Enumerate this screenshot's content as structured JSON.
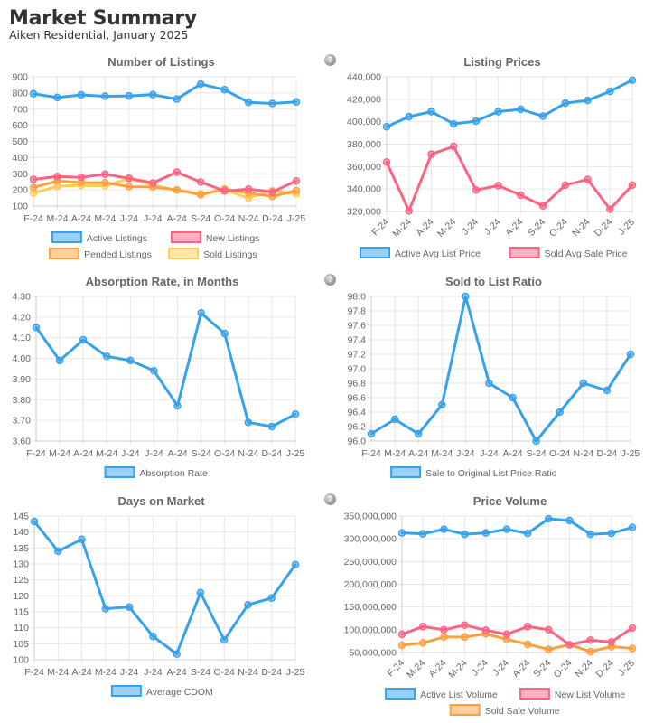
{
  "header": {
    "title": "Market Summary",
    "subtitle": "Aiken Residential, January 2025"
  },
  "help_icon_glyph": "?",
  "colors": {
    "blue": "#36a2eb",
    "pink": "#ff6384",
    "orange": "#ff9f40",
    "yellow": "#ffcd56"
  },
  "chart_data": [
    {
      "id": "listings",
      "type": "line",
      "title": "Number of Listings",
      "categories": [
        "F-24",
        "M-24",
        "A-24",
        "M-24",
        "J-24",
        "J-24",
        "A-24",
        "S-24",
        "O-24",
        "N-24",
        "D-24",
        "J-25"
      ],
      "ylim": [
        100,
        900
      ],
      "yticks": [
        100,
        200,
        300,
        400,
        500,
        600,
        700,
        800,
        900
      ],
      "ytick_format": "plain",
      "grid": true,
      "xlabel_rotated": false,
      "has_help_icon": false,
      "legend_position": "bottom",
      "series": [
        {
          "name": "Active Listings",
          "color": "blue",
          "values": [
            795,
            772,
            788,
            780,
            782,
            790,
            762,
            855,
            820,
            742,
            735,
            745
          ]
        },
        {
          "name": "New Listings",
          "color": "pink",
          "values": [
            265,
            283,
            278,
            297,
            272,
            243,
            310,
            248,
            193,
            205,
            187,
            255
          ]
        },
        {
          "name": "Pended Listings",
          "color": "orange",
          "values": [
            215,
            255,
            245,
            245,
            220,
            218,
            200,
            170,
            205,
            180,
            160,
            195
          ]
        },
        {
          "name": "Sold Listings",
          "color": "yellow",
          "values": [
            180,
            222,
            228,
            225,
            270,
            230,
            198,
            175,
            200,
            150,
            195,
            175
          ]
        }
      ]
    },
    {
      "id": "prices",
      "type": "line",
      "title": "Listing Prices",
      "categories": [
        "F-24",
        "M-24",
        "A-24",
        "M-24",
        "J-24",
        "J-24",
        "A-24",
        "S-24",
        "O-24",
        "N-24",
        "D-24",
        "J-25"
      ],
      "ylim": [
        320000,
        440000
      ],
      "yticks": [
        320000,
        340000,
        360000,
        380000,
        400000,
        420000,
        440000
      ],
      "ytick_format": "comma",
      "grid": true,
      "xlabel_rotated": true,
      "has_help_icon": true,
      "legend_position": "bottom",
      "series": [
        {
          "name": "Active Avg List Price",
          "color": "blue",
          "values": [
            395500,
            404500,
            409000,
            398000,
            400500,
            409000,
            411000,
            405000,
            416500,
            419000,
            427000,
            437000
          ]
        },
        {
          "name": "Sold Avg Sale Price",
          "color": "pink",
          "values": [
            364000,
            320500,
            371000,
            378000,
            339000,
            343000,
            334500,
            325000,
            343500,
            348500,
            322000,
            343500
          ]
        }
      ]
    },
    {
      "id": "absorption",
      "type": "line",
      "title": "Absorption Rate, in Months",
      "categories": [
        "F-24",
        "M-24",
        "A-24",
        "M-24",
        "J-24",
        "J-24",
        "A-24",
        "S-24",
        "O-24",
        "N-24",
        "D-24",
        "J-25"
      ],
      "ylim": [
        3.6,
        4.3
      ],
      "yticks": [
        3.6,
        3.7,
        3.8,
        3.9,
        4.0,
        4.1,
        4.2,
        4.3
      ],
      "ytick_format": "fixed2",
      "grid": true,
      "xlabel_rotated": false,
      "has_help_icon": false,
      "legend_position": "bottom",
      "series": [
        {
          "name": "Absorption Rate",
          "color": "blue",
          "values": [
            4.15,
            3.99,
            4.09,
            4.01,
            3.99,
            3.94,
            3.77,
            4.22,
            4.12,
            3.69,
            3.67,
            3.73
          ]
        }
      ]
    },
    {
      "id": "ratio",
      "type": "line",
      "title": "Sold to List Ratio",
      "categories": [
        "F-24",
        "M-24",
        "A-24",
        "M-24",
        "J-24",
        "J-24",
        "A-24",
        "S-24",
        "O-24",
        "N-24",
        "D-24",
        "J-25"
      ],
      "ylim": [
        96.0,
        98.0
      ],
      "yticks": [
        96.0,
        96.2,
        96.4,
        96.6,
        96.8,
        97.0,
        97.2,
        97.4,
        97.6,
        97.8,
        98.0
      ],
      "ytick_format": "fixed1",
      "grid": true,
      "xlabel_rotated": false,
      "has_help_icon": true,
      "legend_position": "bottom",
      "series": [
        {
          "name": "Sale to Original List Price Ratio",
          "color": "blue",
          "values": [
            96.1,
            96.3,
            96.1,
            96.5,
            98.0,
            96.8,
            96.6,
            96.0,
            96.4,
            96.8,
            96.7,
            97.2
          ]
        }
      ]
    },
    {
      "id": "dom",
      "type": "line",
      "title": "Days on Market",
      "categories": [
        "F-24",
        "M-24",
        "A-24",
        "M-24",
        "J-24",
        "J-24",
        "A-24",
        "S-24",
        "O-24",
        "N-24",
        "D-24",
        "J-25"
      ],
      "ylim": [
        100,
        145
      ],
      "yticks": [
        100,
        105,
        110,
        115,
        120,
        125,
        130,
        135,
        140,
        145
      ],
      "ytick_format": "plain",
      "grid": true,
      "xlabel_rotated": false,
      "has_help_icon": false,
      "legend_position": "bottom",
      "series": [
        {
          "name": "Average CDOM",
          "color": "blue",
          "values": [
            143.3,
            134,
            137.7,
            116,
            116.5,
            107.3,
            101.8,
            121,
            106.2,
            117.2,
            119.3,
            129.8
          ]
        }
      ]
    },
    {
      "id": "volume",
      "type": "line",
      "title": "Price Volume",
      "categories": [
        "F-24",
        "M-24",
        "A-24",
        "M-24",
        "J-24",
        "J-24",
        "A-24",
        "S-24",
        "O-24",
        "N-24",
        "D-24",
        "J-25"
      ],
      "ylim": [
        50000000,
        350000000
      ],
      "yticks": [
        50000000,
        100000000,
        150000000,
        200000000,
        250000000,
        300000000,
        350000000
      ],
      "ytick_format": "comma",
      "grid": true,
      "xlabel_rotated": true,
      "has_help_icon": true,
      "legend_position": "bottom",
      "series": [
        {
          "name": "Active List Volume",
          "color": "blue",
          "values": [
            313000000,
            311000000,
            321000000,
            310000000,
            313000000,
            321000000,
            312000000,
            344000000,
            340000000,
            310000000,
            312000000,
            325000000
          ]
        },
        {
          "name": "New List Volume",
          "color": "pink",
          "values": [
            90000000,
            107000000,
            100000000,
            110000000,
            99000000,
            90000000,
            107000000,
            100000000,
            67000000,
            77000000,
            73000000,
            104000000
          ]
        },
        {
          "name": "Sold Sale Volume",
          "color": "orange",
          "values": [
            66000000,
            71000000,
            84000000,
            84000000,
            91000000,
            79000000,
            68000000,
            57000000,
            67000000,
            52000000,
            63000000,
            59000000
          ]
        }
      ]
    }
  ]
}
